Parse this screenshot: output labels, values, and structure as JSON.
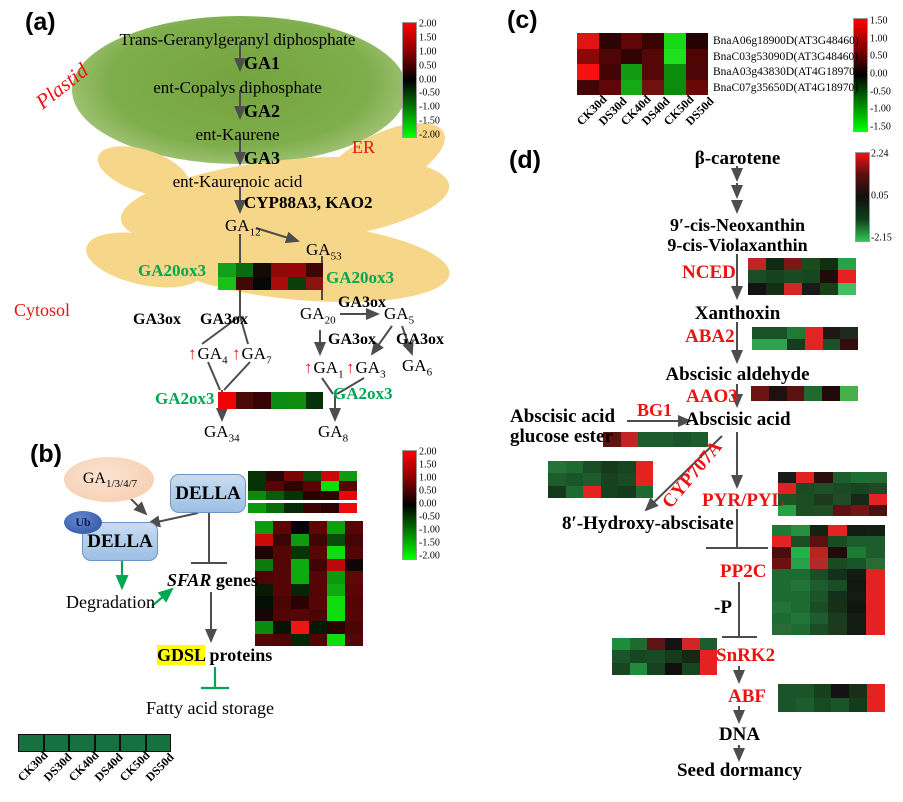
{
  "figure": {
    "a": {
      "label": "(a)",
      "plastid": "Plastid",
      "er": "ER",
      "cytosol": "Cytosol",
      "tggdp": "Trans-Geranylgeranyl diphosphate",
      "ga1": "GA1",
      "ecdp": "ent-Copalys diphosphate",
      "ga2": "GA2",
      "kaurene": "ent-Kaurene",
      "ga3": "GA3",
      "kaurenoic": "ent-Kaurenoic acid",
      "cyp": "CYP88A3, KAO2",
      "ga20ox3": "GA20ox3",
      "ga3ox": "GA3ox",
      "ga2ox3": "GA2ox3",
      "up": "↑",
      "mets": {
        "ga12": {
          "b": "GA",
          "s": "12"
        },
        "ga53": {
          "b": "GA",
          "s": "53"
        },
        "ga20": {
          "b": "GA",
          "s": "20"
        },
        "ga5": {
          "b": "GA",
          "s": "5"
        },
        "ga4": {
          "b": "GA",
          "s": "4"
        },
        "ga7": {
          "b": "GA",
          "s": "7"
        },
        "ga1": {
          "b": "GA",
          "s": "1"
        },
        "ga3": {
          "b": "GA",
          "s": "3"
        },
        "ga6": {
          "b": "GA",
          "s": "6"
        },
        "ga34": {
          "b": "GA",
          "s": "34"
        },
        "ga8": {
          "b": "GA",
          "s": "8"
        }
      }
    },
    "b": {
      "label": "(b)",
      "ga": {
        "b": "GA",
        "s": "1/3/4/7"
      },
      "della": "DELLA",
      "ub": "Ub",
      "degradation": "Degradation",
      "sfar": "SFAR",
      "sfar_rest": " genes",
      "gdsl": "GDSL",
      "gdsl_rest": " proteins",
      "fatty": "Fatty acid storage"
    },
    "c": {
      "label": "(c)",
      "rows": [
        "BnaA06g18900D(AT3G48460)",
        "BnaC03g53090D(AT3G48460)",
        "BnaA03g43830D(AT4G18970)",
        "BnaC07g35650D(AT4G18970)"
      ]
    },
    "d": {
      "label": "(d)",
      "beta": "β-carotene",
      "neox": "9′-cis-Neoxanthin",
      "violax": "9-cis-Violaxanthin",
      "nced": "NCED",
      "xanthoxin": "Xanthoxin",
      "aba2": "ABA2",
      "aldehyde": "Abscisic aldehyde",
      "aao3": "AAO3",
      "ester1": "Abscisic acid",
      "ester2": "glucose ester",
      "bg1": "BG1",
      "aba": "Abscisic acid",
      "cyp707a": "CYP707A",
      "hydroxy": "8′-Hydroxy-abscisate",
      "pyr": "PYR/PYL",
      "pp2c": "PP2C",
      "minus_p": "-P",
      "snrk2": "SnRK2",
      "abf": "ABF",
      "dna": "DNA",
      "dormancy": "Seed dormancy"
    }
  },
  "cols": [
    "CK30d",
    "DS30d",
    "CK40d",
    "DS40d",
    "CK50d",
    "DS50d"
  ],
  "scales": {
    "a": {
      "ticks": [
        "2.00",
        "1.50",
        "1.00",
        "0.50",
        "0.00",
        "-0.50",
        "-1.00",
        "-1.50",
        "-2.00"
      ]
    },
    "b": {
      "ticks": [
        "2.00",
        "1.50",
        "1.00",
        "0.50",
        "0.00",
        "-0.50",
        "-1.00",
        "-1.50",
        "-2.00"
      ]
    },
    "c": {
      "ticks": [
        "1.50",
        "1.00",
        "0.50",
        "0.00",
        "-0.50",
        "-1.00",
        "-1.50"
      ]
    },
    "d": {
      "ticks": [
        "2.24",
        "0.05",
        "-2.15"
      ]
    }
  },
  "colors": {
    "enzyme_green": "#00a651",
    "enzyme_red": "#ee1111",
    "highlight_yellow": "#ffff00",
    "plastid_green": "#7ead4b",
    "er_yellow": "#f6d688",
    "della_blue": "#9cbfe4",
    "ub_blue": "#2c4f9e",
    "legend_green": "#15713f"
  },
  "heatmaps": {
    "a_ga20ox3": {
      "rows": [
        [
          "#12a01c",
          "#0a6b10",
          "#140b02",
          "#8f0808",
          "#960606",
          "#400404"
        ],
        [
          "#16c216",
          "#3f0a06",
          "#070707",
          "#aa0c0c",
          "#0a3f0a",
          "#8c1111"
        ]
      ]
    },
    "a_ga2ox3": {
      "rows": [
        [
          "#ee0404",
          "#4c0a06",
          "#330306",
          "#0b8b12",
          "#108c10",
          "#05320a"
        ]
      ]
    },
    "b_top": {
      "gap_after": 3,
      "rows": [
        [
          "#063206",
          "#2a0505",
          "#7a0505",
          "#0a4a0a",
          "#cc0505",
          "#0f9a0f"
        ],
        [
          "#053305",
          "#560505",
          "#2d0303",
          "#5c0505",
          "#0ddd0d",
          "#570505"
        ],
        [
          "#0c8a0c",
          "#0a5c0a",
          "#053505",
          "#2a0202",
          "#330202",
          "#e60808"
        ],
        [
          "#0c9a0c",
          "#0a6a0a",
          "#052a05",
          "#3a0404",
          "#2d0202",
          "#ee0a0a"
        ]
      ]
    },
    "b_big": {
      "rows": [
        [
          "#0f9a0f",
          "#5c0505",
          "#0a000a",
          "#600505",
          "#0f9f0f",
          "#560505"
        ],
        [
          "#cc0a0a",
          "#3a0505",
          "#0f9a0f",
          "#400505",
          "#0a4a0a",
          "#450505"
        ],
        [
          "#200205",
          "#560505",
          "#053505",
          "#570505",
          "#0fdd0f",
          "#520505"
        ],
        [
          "#0c7a0c",
          "#560505",
          "#0faa0f",
          "#400404",
          "#bb0808",
          "#100505"
        ],
        [
          "#500505",
          "#550505",
          "#0faa0f",
          "#550505",
          "#0c9a0c",
          "#600808"
        ],
        [
          "#0a1a05",
          "#550505",
          "#052505",
          "#550505",
          "#0faa0f",
          "#5a0505"
        ],
        [
          "#050f05",
          "#4a0505",
          "#2a0205",
          "#550505",
          "#0fdd0f",
          "#520505"
        ],
        [
          "#1a0505",
          "#500505",
          "#560505",
          "#4a0505",
          "#0fdd0f",
          "#550505"
        ],
        [
          "#0c8a0c",
          "#051505",
          "#ee1515",
          "#051a05",
          "#2a0202",
          "#4a0505"
        ],
        [
          "#550505",
          "#4a0505",
          "#052505",
          "#500505",
          "#0fdd0f",
          "#550505"
        ]
      ]
    },
    "b_legend": {
      "rows": [
        [
          "#15713f",
          "#15713f",
          "#15713f",
          "#15713f",
          "#15713f",
          "#15713f"
        ]
      ]
    },
    "c_main": {
      "rows": [
        [
          "#e11414",
          "#2d0404",
          "#600606",
          "#3a0404",
          "#18d818",
          "#250303"
        ],
        [
          "#8a0808",
          "#500505",
          "#320303",
          "#560606",
          "#20e020",
          "#500505"
        ],
        [
          "#f61111",
          "#440404",
          "#129a12",
          "#560606",
          "#0c8c0c",
          "#4d0505"
        ],
        [
          "#420404",
          "#600606",
          "#14aa14",
          "#701010",
          "#0c8c0c",
          "#6a0808"
        ]
      ]
    },
    "d_nced": {
      "rows": [
        [
          "#c02525",
          "#112a11",
          "#7a1818",
          "#1d4a1d",
          "#0f2f0f",
          "#2aa047"
        ],
        [
          "#1a4d26",
          "#16421f",
          "#1a4a22",
          "#174620",
          "#200a0a",
          "#e52222"
        ],
        [
          "#131313",
          "#143014",
          "#d32525",
          "#1a1a1a",
          "#164016",
          "#3fbf5f"
        ]
      ]
    },
    "d_aba2": {
      "rows": [
        [
          "#1b5129",
          "#1b5129",
          "#1e7a35",
          "#e02525",
          "#1f1515",
          "#1d2a1d"
        ],
        [
          "#2fa34f",
          "#2fa34f",
          "#153c1c",
          "#e02525",
          "#1b5129",
          "#330d0d"
        ]
      ]
    },
    "d_aao3": {
      "rows": [
        [
          "#6b1414",
          "#201010",
          "#5c1010",
          "#1d6b31",
          "#200a0a",
          "#48b048"
        ]
      ]
    },
    "d_ester": {
      "rows": [
        [
          "#641111",
          "#c12424",
          "#1d5c2d",
          "#1d5c2d",
          "#1a5429",
          "#1d5c2d"
        ]
      ]
    },
    "d_hydroxy": {
      "rows": [
        [
          "#267339",
          "#1d6b31",
          "#1a4d26",
          "#143c1c",
          "#16461f",
          "#e52222"
        ],
        [
          "#1d5c2d",
          "#1a5429",
          "#1d5c2d",
          "#16421f",
          "#1a4a22",
          "#e52222"
        ],
        [
          "#15381c",
          "#1d6b31",
          "#e52222",
          "#16421f",
          "#143c1c",
          "#1d6b31"
        ]
      ]
    },
    "d_pyr": {
      "rows": [
        [
          "#1a1a1a",
          "#dd2222",
          "#2a0d0d",
          "#1d5c2d",
          "#1d6e31",
          "#216b33"
        ],
        [
          "#dd2222",
          "#1d4a22",
          "#1d5026",
          "#194a22",
          "#16461f",
          "#1d4a22"
        ],
        [
          "#1d5426",
          "#1a4d22",
          "#1d3a1d",
          "#234a26",
          "#182818",
          "#e32222"
        ],
        [
          "#22a444",
          "#1d4d22",
          "#204d24",
          "#5c1212",
          "#701616",
          "#4d0f0f"
        ]
      ]
    },
    "d_pp2c": {
      "rows": [
        [
          "#1d7a33",
          "#22903f",
          "#12240f",
          "#e52222",
          "#131c13",
          "#141f14"
        ],
        [
          "#e52222",
          "#1a4d22",
          "#5c1111",
          "#1a4a22",
          "#1d5c2d",
          "#1d5c2d"
        ],
        [
          "#4a0d0d",
          "#22b24a",
          "#bb2222",
          "#200a0a",
          "#1d7a33",
          "#1d5c2d"
        ],
        [
          "#6b1111",
          "#27a04b",
          "#b12a2a",
          "#1a4a22",
          "#1a5429",
          "#2a6b35"
        ],
        [
          "#1d6b31",
          "#1d6b31",
          "#1a4d26",
          "#14301a",
          "#131c13",
          "#e52222"
        ],
        [
          "#1d6b31",
          "#22733a",
          "#1d5c2d",
          "#1a4d26",
          "#10180f",
          "#e52222"
        ],
        [
          "#1d6b31",
          "#1d6b31",
          "#1a5429",
          "#14301a",
          "#131c13",
          "#e52222"
        ],
        [
          "#22733a",
          "#1d6b31",
          "#1a4d26",
          "#172f17",
          "#0f170f",
          "#e52222"
        ],
        [
          "#1d6b31",
          "#22733a",
          "#1d5c2d",
          "#1a3c1d",
          "#131c13",
          "#e52222"
        ],
        [
          "#2a6b35",
          "#1d6b31",
          "#1a4d26",
          "#1d3a1d",
          "#131c13",
          "#e52222"
        ]
      ]
    },
    "d_snrk2": {
      "rows": [
        [
          "#1e8c3a",
          "#1d6b31",
          "#5c1414",
          "#141414",
          "#d32525",
          "#1d5c2d"
        ],
        [
          "#1a5429",
          "#16461f",
          "#1a4a22",
          "#143c1c",
          "#142814",
          "#e52222"
        ],
        [
          "#174620",
          "#1e8c3a",
          "#16421f",
          "#101010",
          "#16461f",
          "#e52222"
        ]
      ]
    },
    "d_abf": {
      "rows": [
        [
          "#1a5429",
          "#1a5429",
          "#154019",
          "#131313",
          "#1a2e1a",
          "#e52222"
        ],
        [
          "#1a5429",
          "#1d5c2d",
          "#164a20",
          "#1a5429",
          "#143c1c",
          "#e52222"
        ]
      ]
    }
  }
}
